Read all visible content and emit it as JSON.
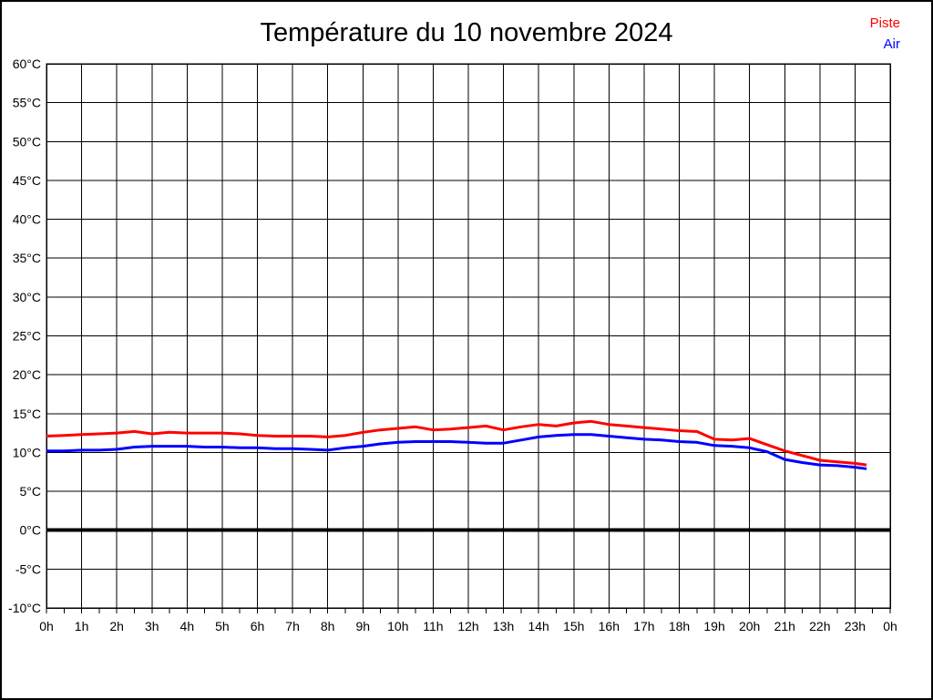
{
  "window": {
    "background": "#ffffff",
    "border_color": "#000000"
  },
  "legend": {
    "position": "top-right",
    "entries": [
      {
        "label": "Piste",
        "color": "#ff0000"
      },
      {
        "label": "Air",
        "color": "#0000ff"
      }
    ]
  },
  "chart_data": {
    "type": "line",
    "title": "Température du 10 novembre 2024",
    "xlabel": "",
    "ylabel": "",
    "xlim": [
      0,
      24
    ],
    "ylim": [
      -10,
      60
    ],
    "grid": true,
    "grid_color": "#000000",
    "x_gridline_step_hours": 1,
    "x_minor_tick_step_hours": 0.5,
    "y_gridline_step_degrees": 5,
    "zero_line": {
      "value": 0,
      "color": "#000000",
      "width": 4
    },
    "x_tick_labels": [
      "0h",
      "1h",
      "2h",
      "3h",
      "4h",
      "5h",
      "6h",
      "7h",
      "8h",
      "9h",
      "10h",
      "11h",
      "12h",
      "13h",
      "14h",
      "15h",
      "16h",
      "17h",
      "18h",
      "19h",
      "20h",
      "21h",
      "22h",
      "23h",
      "0h"
    ],
    "y_tick_labels": [
      "60°C",
      "55°C",
      "50°C",
      "45°C",
      "40°C",
      "35°C",
      "30°C",
      "25°C",
      "20°C",
      "15°C",
      "10°C",
      "5°C",
      "0°C",
      "-5°C",
      "-10°C"
    ],
    "y_tick_values": [
      60,
      55,
      50,
      45,
      40,
      35,
      30,
      25,
      20,
      15,
      10,
      5,
      0,
      -5,
      -10
    ],
    "x_hours": [
      0,
      0.5,
      1,
      1.5,
      2,
      2.5,
      3,
      3.5,
      4,
      4.5,
      5,
      5.5,
      6,
      6.5,
      7,
      7.5,
      8,
      8.5,
      9,
      9.5,
      10,
      10.5,
      11,
      11.5,
      12,
      12.5,
      13,
      13.5,
      14,
      14.5,
      15,
      15.5,
      16,
      16.5,
      17,
      17.5,
      18,
      18.5,
      19,
      19.5,
      20,
      20.5,
      21,
      21.5,
      22,
      22.5,
      23,
      23.33
    ],
    "series": [
      {
        "name": "Piste",
        "color": "#ff0000",
        "line_width": 3,
        "values": [
          12.1,
          12.2,
          12.3,
          12.4,
          12.5,
          12.7,
          12.4,
          12.6,
          12.5,
          12.5,
          12.5,
          12.4,
          12.2,
          12.1,
          12.1,
          12.1,
          12.0,
          12.2,
          12.6,
          12.9,
          13.1,
          13.3,
          12.9,
          13.0,
          13.2,
          13.4,
          12.9,
          13.3,
          13.6,
          13.4,
          13.8,
          14.0,
          13.6,
          13.4,
          13.2,
          13.0,
          12.8,
          12.7,
          11.7,
          11.6,
          11.8,
          11.0,
          10.2,
          9.6,
          9.0,
          8.8,
          8.6,
          8.4
        ]
      },
      {
        "name": "Air",
        "color": "#0000ff",
        "line_width": 3,
        "values": [
          10.2,
          10.2,
          10.3,
          10.3,
          10.4,
          10.7,
          10.8,
          10.8,
          10.8,
          10.7,
          10.7,
          10.6,
          10.6,
          10.5,
          10.5,
          10.4,
          10.3,
          10.6,
          10.8,
          11.1,
          11.3,
          11.4,
          11.4,
          11.4,
          11.3,
          11.2,
          11.2,
          11.6,
          12.0,
          12.2,
          12.3,
          12.3,
          12.1,
          11.9,
          11.7,
          11.6,
          11.4,
          11.3,
          10.9,
          10.8,
          10.6,
          10.1,
          9.1,
          8.7,
          8.4,
          8.3,
          8.1,
          7.9
        ]
      }
    ]
  }
}
